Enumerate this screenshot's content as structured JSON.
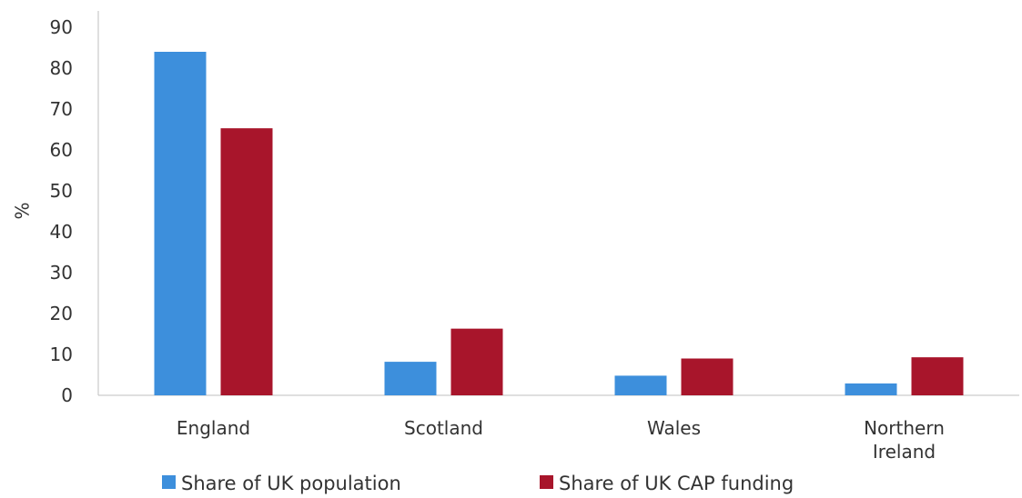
{
  "chart_data": {
    "type": "bar",
    "categories": [
      "England",
      "Scotland",
      "Wales",
      "Northern Ireland"
    ],
    "category_lines": [
      [
        "England"
      ],
      [
        "Scotland"
      ],
      [
        "Wales"
      ],
      [
        "Northern",
        "Ireland"
      ]
    ],
    "series": [
      {
        "name": "Share of UK population",
        "color": "#3d8fdc",
        "values": [
          84,
          8.2,
          4.8,
          2.9
        ]
      },
      {
        "name": "Share of UK CAP funding",
        "color": "#a8152b",
        "values": [
          65.3,
          16.3,
          9,
          9.3
        ]
      }
    ],
    "title": "",
    "xlabel": "",
    "ylabel": "%",
    "ylim": [
      0,
      90
    ],
    "yticks": [
      0,
      10,
      20,
      30,
      40,
      50,
      60,
      70,
      80,
      90
    ],
    "grid": false,
    "legend": "bottom"
  }
}
